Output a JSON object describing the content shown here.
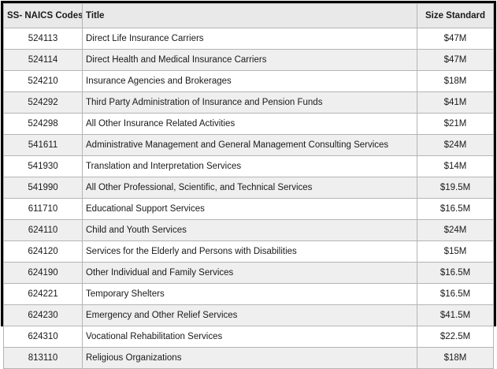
{
  "table": {
    "headers": {
      "code": "SS- NAICS Codes",
      "title": "Title",
      "size": "Size Standard"
    },
    "rows": [
      {
        "code": "524113",
        "title": "Direct Life Insurance Carriers",
        "size": "$47M"
      },
      {
        "code": "524114",
        "title": "Direct Health and Medical Insurance Carriers",
        "size": "$47M"
      },
      {
        "code": "524210",
        "title": "Insurance Agencies and Brokerages",
        "size": "$18M"
      },
      {
        "code": "524292",
        "title": "Third Party Administration of Insurance and Pension Funds",
        "size": "$41M"
      },
      {
        "code": "524298",
        "title": "All Other Insurance Related Activities",
        "size": "$21M"
      },
      {
        "code": "541611",
        "title": "Administrative Management and General Management Consulting Services",
        "size": "$24M"
      },
      {
        "code": "541930",
        "title": "Translation and Interpretation Services",
        "size": "$14M"
      },
      {
        "code": "541990",
        "title": "All Other Professional, Scientific, and Technical Services",
        "size": "$19.5M"
      },
      {
        "code": "611710",
        "title": "Educational Support Services",
        "size": "$16.5M"
      },
      {
        "code": "624110",
        "title": "Child and Youth Services",
        "size": "$24M"
      },
      {
        "code": "624120",
        "title": "Services for the Elderly and Persons with Disabilities",
        "size": "$15M"
      },
      {
        "code": "624190",
        "title": "Other Individual and Family Services",
        "size": "$16.5M"
      },
      {
        "code": "624221",
        "title": "Temporary Shelters",
        "size": "$16.5M"
      },
      {
        "code": "624230",
        "title": "Emergency and Other Relief Services",
        "size": "$41.5M"
      },
      {
        "code": "624310",
        "title": "Vocational Rehabilitation Services",
        "size": "$22.5M"
      },
      {
        "code": "813110",
        "title": "Religious Organizations",
        "size": "$18M"
      }
    ]
  },
  "colors": {
    "header_bg": "#e9e9e9",
    "alt_row_bg": "#efefef",
    "outer_border": "#000000",
    "inner_border": "#b5b5b5",
    "text": "#1a1a1a"
  }
}
